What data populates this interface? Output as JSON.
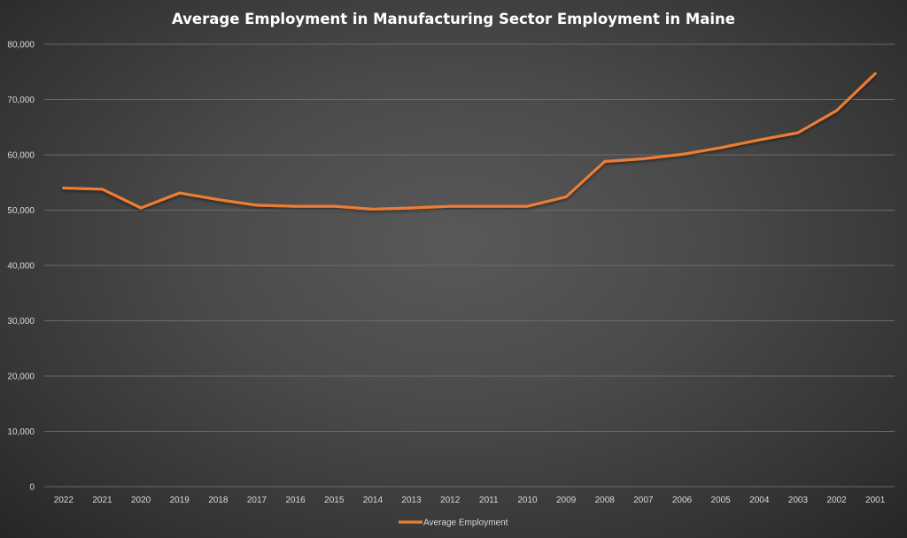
{
  "chart_data": {
    "type": "line",
    "title": "Average Employment in Manufacturing Sector Employment in Maine",
    "xlabel": "",
    "ylabel": "",
    "categories": [
      "2022",
      "2021",
      "2020",
      "2019",
      "2018",
      "2017",
      "2016",
      "2015",
      "2014",
      "2013",
      "2012",
      "2011",
      "2010",
      "2009",
      "2008",
      "2007",
      "2006",
      "2005",
      "2004",
      "2003",
      "2002",
      "2001"
    ],
    "series": [
      {
        "name": "Average Employment",
        "color": "#ED7D31",
        "values": [
          54000,
          53800,
          50400,
          53100,
          51900,
          50900,
          50700,
          50700,
          50200,
          50400,
          50700,
          50700,
          50700,
          52400,
          58800,
          59300,
          60100,
          61300,
          62700,
          64000,
          68000,
          74700
        ]
      }
    ],
    "ylim": [
      0,
      80000
    ],
    "yticks": [
      0,
      10000,
      20000,
      30000,
      40000,
      50000,
      60000,
      70000,
      80000
    ],
    "ytick_labels": [
      "0",
      "10,000",
      "20,000",
      "30,000",
      "40,000",
      "50,000",
      "60,000",
      "70,000",
      "80,000"
    ],
    "grid": true,
    "legend_position": "bottom"
  }
}
